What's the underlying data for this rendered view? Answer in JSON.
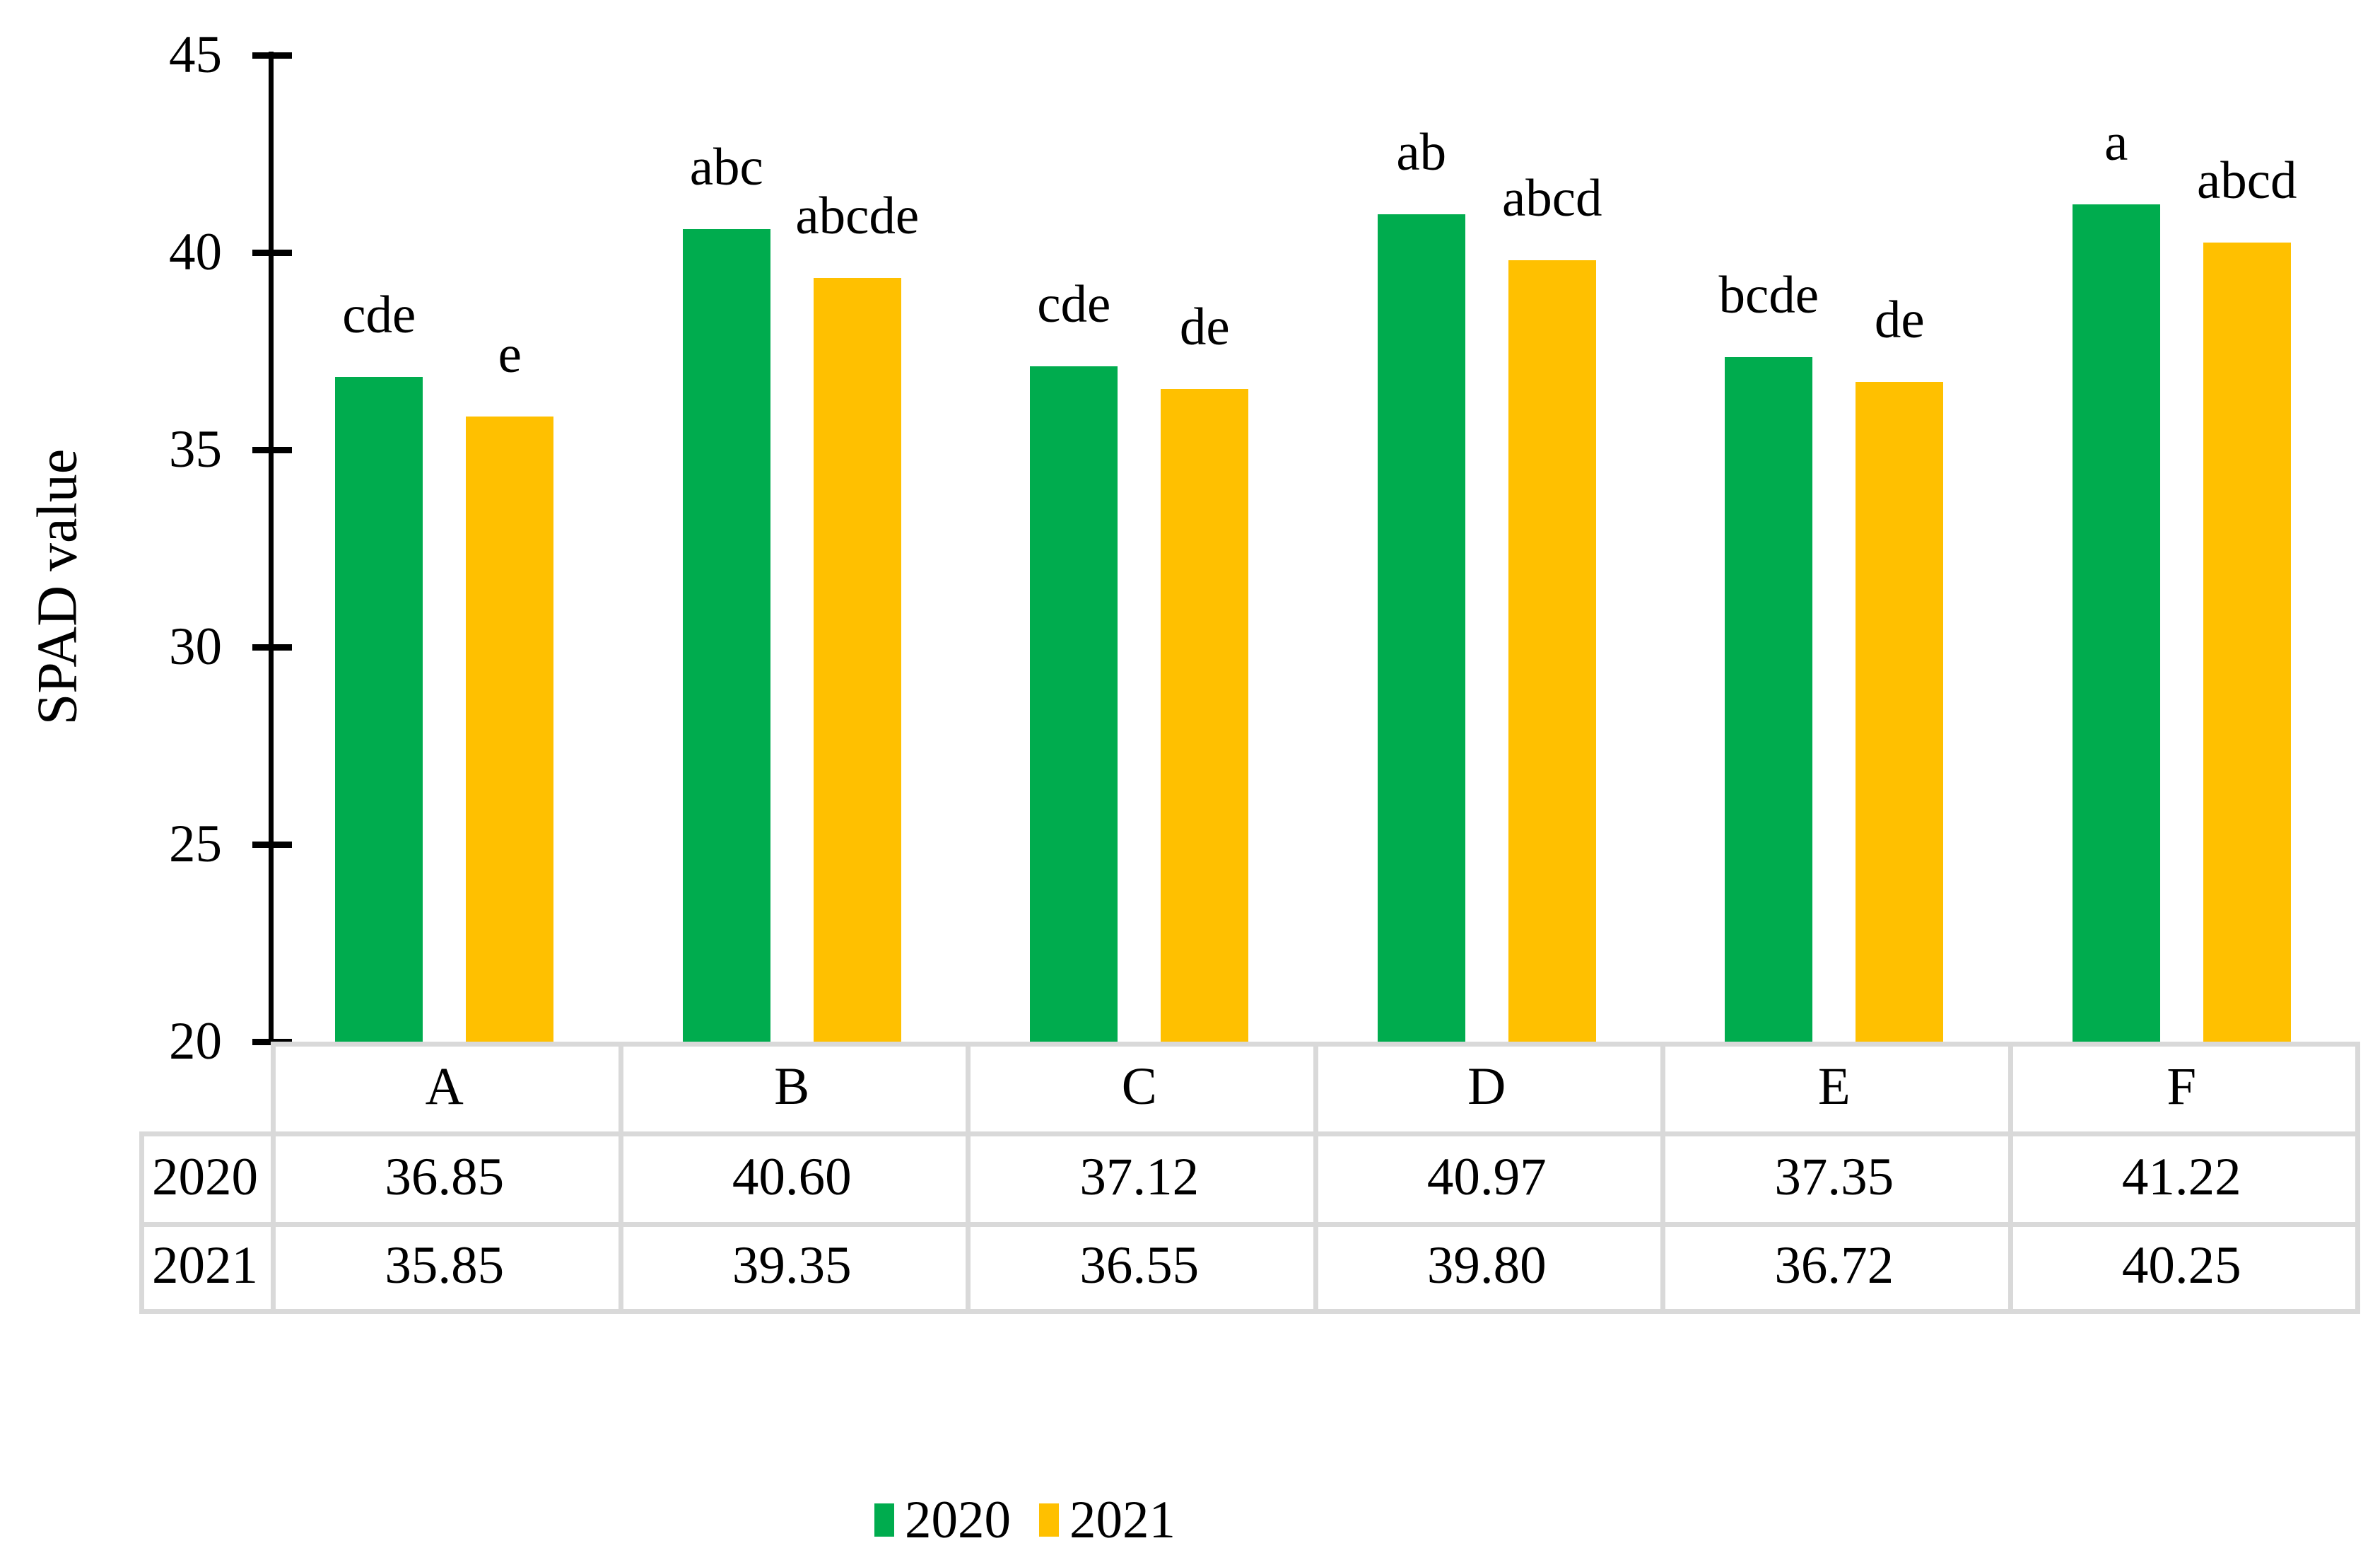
{
  "figure": {
    "background": "#FFFFFF",
    "text_color": "#000000"
  },
  "chart_data": {
    "type": "bar",
    "title": "",
    "xlabel": "",
    "ylabel": "SPAD value",
    "ylim": [
      20,
      45
    ],
    "yticks": [
      20,
      25,
      30,
      35,
      40,
      45
    ],
    "grid": false,
    "axis_color": "#000000",
    "table_border_color": "#D9D9D9",
    "legend_position": "bottom",
    "categories": [
      "A",
      "B",
      "C",
      "D",
      "E",
      "F"
    ],
    "series": [
      {
        "name": "2020",
        "color": "#00AC4E",
        "values": [
          36.85,
          40.6,
          37.12,
          40.97,
          37.35,
          41.22
        ],
        "display_values": [
          "36.85",
          "40.60",
          "37.12",
          "40.97",
          "37.35",
          "41.22"
        ],
        "sig_letters": [
          "cde",
          "abc",
          "cde",
          "ab",
          "bcde",
          "a"
        ]
      },
      {
        "name": "2021",
        "color": "#FFC000",
        "values": [
          35.85,
          39.35,
          36.55,
          39.8,
          36.72,
          40.25
        ],
        "display_values": [
          "35.85",
          "39.35",
          "36.55",
          "39.80",
          "36.72",
          "40.25"
        ],
        "sig_letters": [
          "e",
          "abcde",
          "de",
          "abcd",
          "de",
          "abcd"
        ]
      }
    ],
    "data_table": {
      "corner_label": "",
      "column_headers": [
        "A",
        "B",
        "C",
        "D",
        "E",
        "F"
      ],
      "rows": [
        {
          "label": "2020",
          "cells": [
            "36.85",
            "40.60",
            "37.12",
            "40.97",
            "37.35",
            "41.22"
          ]
        },
        {
          "label": "2021",
          "cells": [
            "35.85",
            "39.35",
            "36.55",
            "39.80",
            "36.72",
            "40.25"
          ]
        }
      ]
    },
    "legend": {
      "entries": [
        "2020",
        "2021"
      ]
    }
  }
}
